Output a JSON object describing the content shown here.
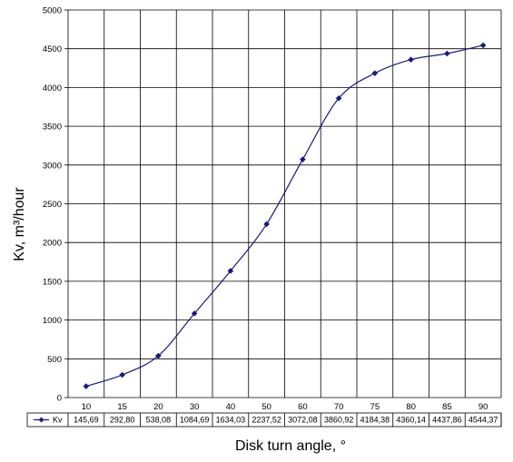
{
  "chart_data": {
    "type": "line",
    "xlabel": "Disk turn angle, °",
    "ylabel": "Kv, m³/hour",
    "ylim": [
      0,
      5000
    ],
    "yticks": [
      "0",
      "500",
      "1000",
      "1500",
      "2000",
      "2500",
      "3000",
      "3500",
      "4000",
      "4500",
      "5000"
    ],
    "categories": [
      "10",
      "15",
      "20",
      "30",
      "40",
      "50",
      "60",
      "70",
      "75",
      "80",
      "85",
      "90"
    ],
    "series": [
      {
        "name": "Kv",
        "values": [
          145.69,
          292.8,
          538.08,
          1084.69,
          1634.03,
          2237.52,
          3072.08,
          3860.92,
          4184.38,
          4360.14,
          4437.86,
          4544.37
        ],
        "value_labels": [
          "145,69",
          "292,80",
          "538,08",
          "1084,69",
          "1634,03",
          "2237,52",
          "3072,08",
          "3860,92",
          "4184,38",
          "4360,14",
          "4437,86",
          "4544,37"
        ],
        "color": "#1a1a7a"
      }
    ],
    "grid": true,
    "legend": "table-left"
  }
}
